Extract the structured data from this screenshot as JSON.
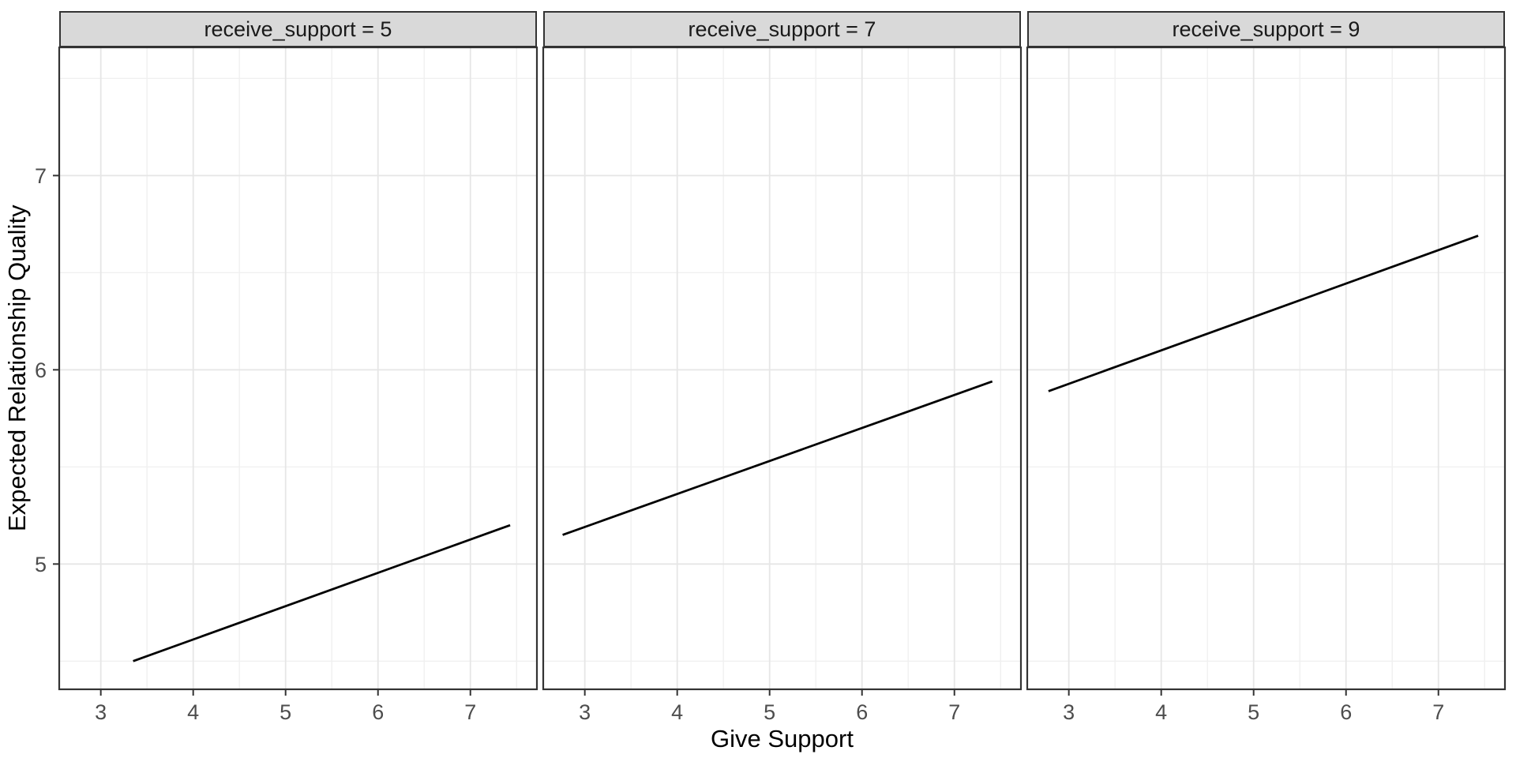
{
  "chart_data": {
    "type": "line",
    "title": "",
    "xlabel": "Give Support",
    "ylabel": "Expected Relationship Quality",
    "facet_variable": "receive_support",
    "legend": "none",
    "grid": true,
    "x_axis": {
      "range": [
        2.55,
        7.72
      ],
      "major_ticks": [
        3,
        4,
        5,
        6,
        7
      ],
      "minor_ticks": [
        3.5,
        4.5,
        5.5,
        6.5,
        7.5
      ],
      "tick_labels": [
        "3",
        "4",
        "5",
        "6",
        "7"
      ]
    },
    "y_axis": {
      "range": [
        4.355,
        7.66
      ],
      "major_ticks": [
        5,
        6,
        7
      ],
      "minor_ticks": [
        4.5,
        5.5,
        6.5,
        7.5
      ],
      "tick_labels": [
        "5",
        "6",
        "7"
      ]
    },
    "facets": [
      {
        "label": "receive_support = 5",
        "value": 5,
        "line": {
          "x": [
            3.35,
            7.43
          ],
          "y": [
            4.5,
            5.2
          ]
        }
      },
      {
        "label": "receive_support = 7",
        "value": 7,
        "line": {
          "x": [
            2.76,
            7.41
          ],
          "y": [
            5.15,
            5.94
          ]
        }
      },
      {
        "label": "receive_support = 9",
        "value": 9,
        "line": {
          "x": [
            2.78,
            7.43
          ],
          "y": [
            5.89,
            6.69
          ]
        }
      }
    ],
    "colors": {
      "line": "#000000",
      "strip_bg": "#d9d9d9",
      "strip_border": "#333333",
      "panel_border": "#333333",
      "panel_bg": "#ffffff",
      "grid_major": "#e6e6e6",
      "grid_minor": "#f0f0f0",
      "tick_mark": "#333333",
      "tick_label": "#4d4d4d",
      "background": "#ffffff"
    }
  }
}
